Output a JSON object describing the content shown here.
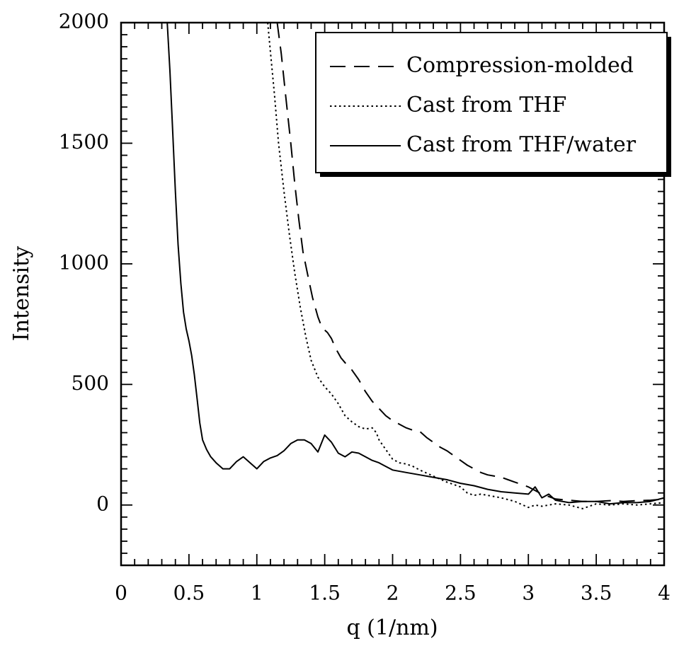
{
  "chart_data": {
    "type": "line",
    "title": "",
    "xlabel": "q (1/nm)",
    "ylabel": "Intensity",
    "xlim": [
      0,
      4
    ],
    "ylim": [
      -250,
      2000
    ],
    "x_ticks": [
      0,
      0.5,
      1,
      1.5,
      2,
      2.5,
      3,
      3.5,
      4
    ],
    "x_tick_labels": [
      "0",
      "0.5",
      "1",
      "1.5",
      "2",
      "2.5",
      "3",
      "3.5",
      "4"
    ],
    "y_ticks": [
      0,
      500,
      1000,
      1500,
      2000
    ],
    "y_tick_labels": [
      "0",
      "500",
      "1000",
      "1500",
      "2000"
    ],
    "grid": false,
    "legend_position": "top-right",
    "series": [
      {
        "name": "Compression-molded",
        "style": "dashed",
        "color": "#000000",
        "points": [
          [
            1.15,
            2000
          ],
          [
            1.18,
            1870
          ],
          [
            1.21,
            1710
          ],
          [
            1.25,
            1500
          ],
          [
            1.28,
            1330
          ],
          [
            1.31,
            1180
          ],
          [
            1.34,
            1050
          ],
          [
            1.38,
            940
          ],
          [
            1.41,
            860
          ],
          [
            1.45,
            780
          ],
          [
            1.48,
            735
          ],
          [
            1.52,
            715
          ],
          [
            1.55,
            690
          ],
          [
            1.58,
            650
          ],
          [
            1.62,
            610
          ],
          [
            1.65,
            590
          ],
          [
            1.7,
            560
          ],
          [
            1.75,
            520
          ],
          [
            1.8,
            470
          ],
          [
            1.85,
            430
          ],
          [
            1.9,
            400
          ],
          [
            1.95,
            370
          ],
          [
            2.0,
            350
          ],
          [
            2.05,
            335
          ],
          [
            2.1,
            320
          ],
          [
            2.15,
            310
          ],
          [
            2.2,
            305
          ],
          [
            2.25,
            280
          ],
          [
            2.3,
            260
          ],
          [
            2.35,
            240
          ],
          [
            2.4,
            225
          ],
          [
            2.45,
            205
          ],
          [
            2.5,
            185
          ],
          [
            2.55,
            165
          ],
          [
            2.6,
            150
          ],
          [
            2.65,
            135
          ],
          [
            2.7,
            125
          ],
          [
            2.75,
            120
          ],
          [
            2.8,
            115
          ],
          [
            2.85,
            105
          ],
          [
            2.9,
            95
          ],
          [
            2.95,
            85
          ],
          [
            3.0,
            75
          ],
          [
            3.05,
            60
          ],
          [
            3.1,
            45
          ],
          [
            3.15,
            35
          ],
          [
            3.2,
            25
          ],
          [
            3.3,
            20
          ],
          [
            3.4,
            15
          ],
          [
            3.5,
            15
          ],
          [
            3.6,
            18
          ],
          [
            3.7,
            15
          ],
          [
            3.8,
            18
          ],
          [
            3.9,
            20
          ],
          [
            4.0,
            25
          ]
        ]
      },
      {
        "name": "Cast from THF",
        "style": "dotted",
        "color": "#000000",
        "points": [
          [
            1.08,
            2000
          ],
          [
            1.1,
            1880
          ],
          [
            1.13,
            1700
          ],
          [
            1.16,
            1500
          ],
          [
            1.2,
            1300
          ],
          [
            1.24,
            1120
          ],
          [
            1.28,
            960
          ],
          [
            1.32,
            820
          ],
          [
            1.36,
            700
          ],
          [
            1.4,
            600
          ],
          [
            1.45,
            530
          ],
          [
            1.5,
            490
          ],
          [
            1.55,
            460
          ],
          [
            1.6,
            420
          ],
          [
            1.65,
            370
          ],
          [
            1.7,
            345
          ],
          [
            1.75,
            325
          ],
          [
            1.8,
            315
          ],
          [
            1.85,
            320
          ],
          [
            1.88,
            300
          ],
          [
            1.9,
            270
          ],
          [
            1.95,
            230
          ],
          [
            2.0,
            190
          ],
          [
            2.05,
            175
          ],
          [
            2.1,
            170
          ],
          [
            2.15,
            160
          ],
          [
            2.2,
            145
          ],
          [
            2.3,
            120
          ],
          [
            2.4,
            95
          ],
          [
            2.5,
            75
          ],
          [
            2.55,
            50
          ],
          [
            2.6,
            40
          ],
          [
            2.65,
            45
          ],
          [
            2.7,
            40
          ],
          [
            2.8,
            30
          ],
          [
            2.9,
            15
          ],
          [
            3.0,
            -10
          ],
          [
            3.05,
            0
          ],
          [
            3.1,
            -5
          ],
          [
            3.2,
            5
          ],
          [
            3.3,
            0
          ],
          [
            3.4,
            -15
          ],
          [
            3.5,
            5
          ],
          [
            3.6,
            0
          ],
          [
            3.7,
            5
          ],
          [
            3.8,
            0
          ],
          [
            3.9,
            5
          ],
          [
            4.0,
            10
          ]
        ]
      },
      {
        "name": "Cast from THF/water",
        "style": "solid",
        "color": "#000000",
        "points": [
          [
            0.34,
            2000
          ],
          [
            0.36,
            1800
          ],
          [
            0.38,
            1550
          ],
          [
            0.4,
            1300
          ],
          [
            0.42,
            1080
          ],
          [
            0.44,
            920
          ],
          [
            0.46,
            800
          ],
          [
            0.48,
            730
          ],
          [
            0.5,
            680
          ],
          [
            0.52,
            620
          ],
          [
            0.54,
            540
          ],
          [
            0.56,
            440
          ],
          [
            0.58,
            340
          ],
          [
            0.6,
            270
          ],
          [
            0.63,
            230
          ],
          [
            0.66,
            200
          ],
          [
            0.7,
            175
          ],
          [
            0.75,
            150
          ],
          [
            0.8,
            150
          ],
          [
            0.85,
            180
          ],
          [
            0.9,
            200
          ],
          [
            0.95,
            175
          ],
          [
            1.0,
            150
          ],
          [
            1.05,
            180
          ],
          [
            1.1,
            195
          ],
          [
            1.15,
            205
          ],
          [
            1.2,
            225
          ],
          [
            1.25,
            255
          ],
          [
            1.3,
            270
          ],
          [
            1.35,
            270
          ],
          [
            1.4,
            255
          ],
          [
            1.45,
            220
          ],
          [
            1.5,
            290
          ],
          [
            1.55,
            260
          ],
          [
            1.6,
            215
          ],
          [
            1.65,
            200
          ],
          [
            1.7,
            220
          ],
          [
            1.75,
            215
          ],
          [
            1.8,
            200
          ],
          [
            1.85,
            185
          ],
          [
            1.9,
            175
          ],
          [
            1.95,
            160
          ],
          [
            2.0,
            145
          ],
          [
            2.1,
            135
          ],
          [
            2.2,
            125
          ],
          [
            2.3,
            115
          ],
          [
            2.4,
            105
          ],
          [
            2.5,
            90
          ],
          [
            2.6,
            80
          ],
          [
            2.7,
            65
          ],
          [
            2.8,
            55
          ],
          [
            2.9,
            50
          ],
          [
            3.0,
            45
          ],
          [
            3.05,
            75
          ],
          [
            3.1,
            30
          ],
          [
            3.15,
            45
          ],
          [
            3.2,
            20
          ],
          [
            3.3,
            10
          ],
          [
            3.4,
            15
          ],
          [
            3.5,
            15
          ],
          [
            3.6,
            5
          ],
          [
            3.7,
            10
          ],
          [
            3.8,
            10
          ],
          [
            3.9,
            15
          ],
          [
            4.0,
            30
          ]
        ]
      }
    ]
  }
}
